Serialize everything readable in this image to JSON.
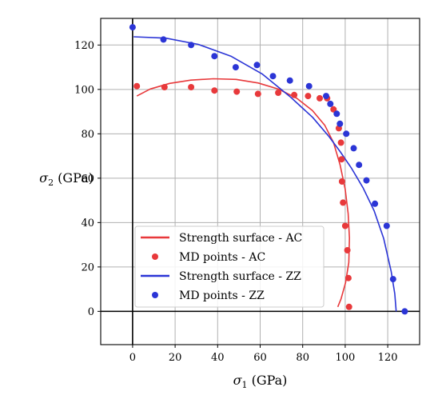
{
  "chart_data": {
    "type": "scatter",
    "xlabel": "σ₁ (GPa)",
    "ylabel": "σ₂ (GPa)",
    "xlim": [
      -15,
      135
    ],
    "ylim": [
      -15,
      132
    ],
    "grid": true,
    "legend_position": "lower-left",
    "xticks": [
      "0",
      "20",
      "40",
      "60",
      "80",
      "100",
      "120"
    ],
    "yticks": [
      "0",
      "20",
      "40",
      "60",
      "80",
      "100",
      "120"
    ],
    "series": [
      {
        "name": "Strength surface - AC",
        "kind": "line",
        "color": "#e8393b",
        "x": [
          2.0,
          8.3,
          17.4,
          27.4,
          38.0,
          48.7,
          59.1,
          68.7,
          77.2,
          84.6,
          90.4,
          94.5,
          97.6,
          100.0,
          101.4,
          102.0,
          101.7,
          100.2,
          98.0,
          96.5
        ],
        "y": [
          97.0,
          100.2,
          102.7,
          104.2,
          104.8,
          104.5,
          102.9,
          100.1,
          96.0,
          90.5,
          83.8,
          76.0,
          66.0,
          55.0,
          44.0,
          33.0,
          22.0,
          13.0,
          5.5,
          2.0
        ]
      },
      {
        "name": "MD points - AC",
        "kind": "points",
        "color": "#e8393b",
        "x": [
          2.0,
          15.0,
          27.5,
          38.5,
          49.0,
          59.0,
          68.5,
          76.0,
          82.5,
          88.0,
          91.5,
          94.5,
          97.0,
          98.0,
          98.3,
          98.5,
          99.0,
          100.0,
          101.0,
          101.5,
          101.8
        ],
        "y": [
          101.5,
          101.0,
          101.0,
          99.5,
          99.0,
          98.0,
          98.5,
          97.5,
          97.0,
          96.0,
          96.0,
          91.0,
          82.5,
          76.0,
          68.5,
          58.5,
          49.0,
          38.5,
          27.5,
          15.0,
          2.0
        ]
      },
      {
        "name": "Strength surface - ZZ",
        "kind": "line",
        "color": "#2b35d6",
        "x": [
          0.5,
          15.6,
          30.9,
          46.2,
          60.9,
          74.0,
          84.7,
          92.4,
          97.6,
          103.0,
          108.4,
          113.6,
          118.1,
          121.6,
          123.3,
          124.0
        ],
        "y": [
          123.7,
          123.1,
          120.3,
          115.0,
          107.0,
          96.8,
          87.4,
          78.7,
          72.0,
          64.4,
          55.7,
          45.3,
          32.9,
          18.0,
          8.0,
          0.0
        ]
      },
      {
        "name": "MD points - ZZ",
        "kind": "points",
        "color": "#2b35d6",
        "x": [
          0.0,
          14.5,
          27.5,
          38.5,
          48.5,
          58.5,
          66.0,
          74.0,
          83.0,
          91.0,
          93.0,
          96.0,
          97.5,
          100.5,
          104.0,
          106.5,
          110.0,
          114.0,
          119.5,
          122.5,
          128.0
        ],
        "y": [
          128.0,
          122.5,
          120.0,
          115.0,
          110.0,
          111.0,
          106.0,
          104.0,
          101.5,
          97.0,
          93.5,
          89.0,
          84.5,
          80.0,
          73.5,
          66.0,
          59.0,
          48.5,
          38.5,
          14.5,
          0.0
        ]
      }
    ]
  }
}
